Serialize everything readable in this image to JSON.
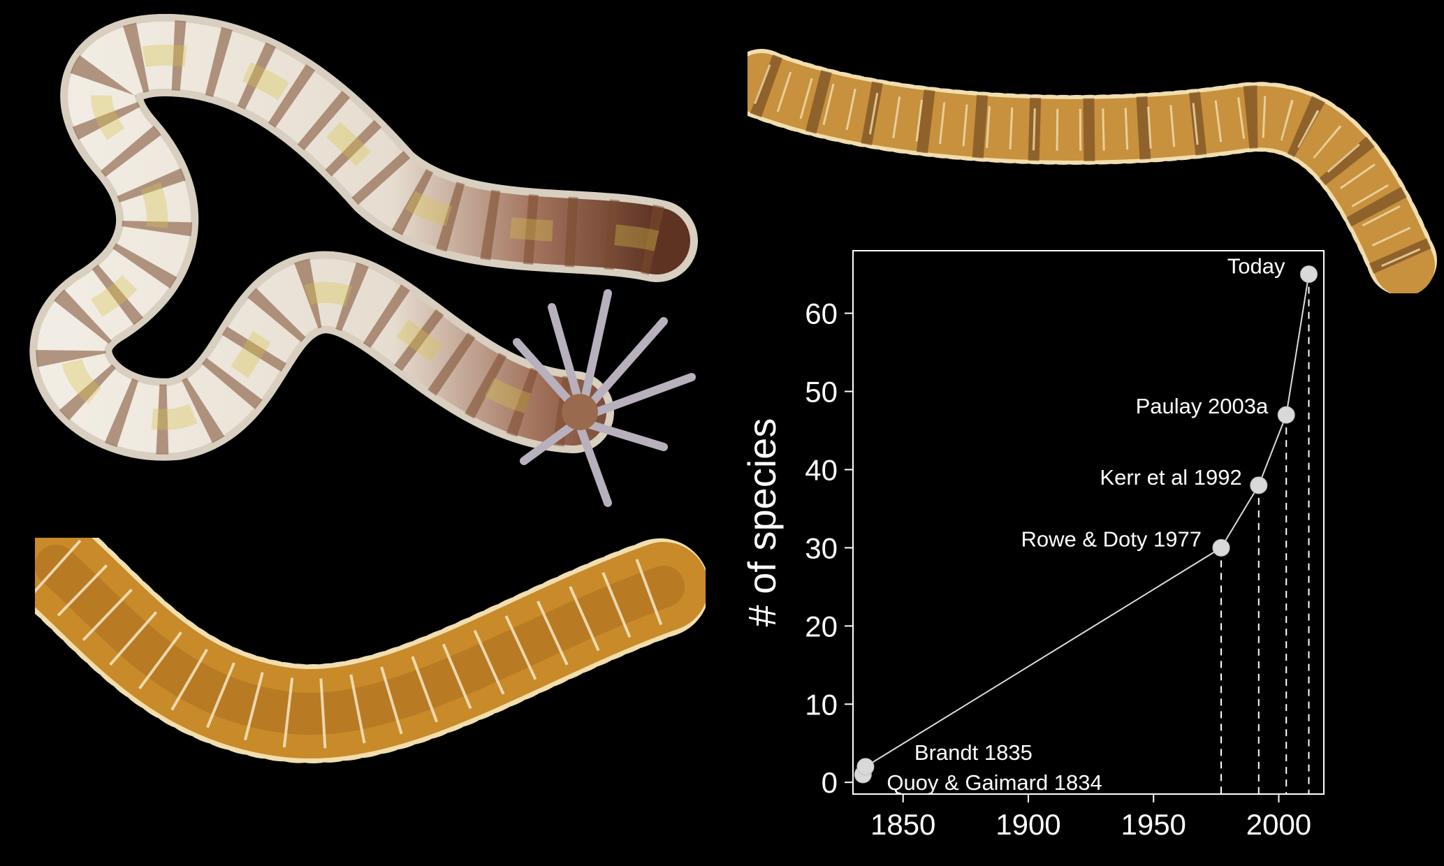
{
  "figure": {
    "photos": [
      {
        "name": "white-brown-sea-cucumber-photo",
        "colors": {
          "body": "#e9e2d6",
          "band": "#7a4a2e",
          "tip": "#5e3322",
          "tentacles": "#b8b0bc"
        }
      },
      {
        "name": "orange-spiny-sea-cucumber-photo",
        "colors": {
          "body": "#c98a2a",
          "spine": "#f4e7c4",
          "spot": "#7a4a1e"
        }
      },
      {
        "name": "banded-spiny-sea-cucumber-photo",
        "colors": {
          "body": "#c7913e",
          "band": "#6b4220",
          "spine": "#f1deaf"
        }
      }
    ]
  },
  "chart_data": {
    "type": "line",
    "title": "",
    "xlabel": "",
    "ylabel": "# of species",
    "xlim": [
      1830,
      2018
    ],
    "ylim": [
      -1.5,
      68
    ],
    "x_ticks": [
      1850,
      1900,
      1950,
      2000
    ],
    "y_ticks": [
      0,
      10,
      20,
      30,
      40,
      50,
      60
    ],
    "grid": false,
    "series": [
      {
        "points": [
          {
            "x": 1834,
            "y": 1,
            "label": "Quoy & Gaimard 1834"
          },
          {
            "x": 1835,
            "y": 2,
            "label": "Brandt 1835"
          },
          {
            "x": 1977,
            "y": 30,
            "label": "Rowe & Doty 1977"
          },
          {
            "x": 1992,
            "y": 38,
            "label": "Kerr et al 1992"
          },
          {
            "x": 2003,
            "y": 47,
            "label": "Paulay 2003a"
          },
          {
            "x": 2012,
            "y": 65,
            "label": "Today"
          }
        ]
      }
    ],
    "colors": {
      "line": "#dcdcdc",
      "marker": "#d9d9d9",
      "text": "#ffffff",
      "background": "#000000"
    }
  }
}
